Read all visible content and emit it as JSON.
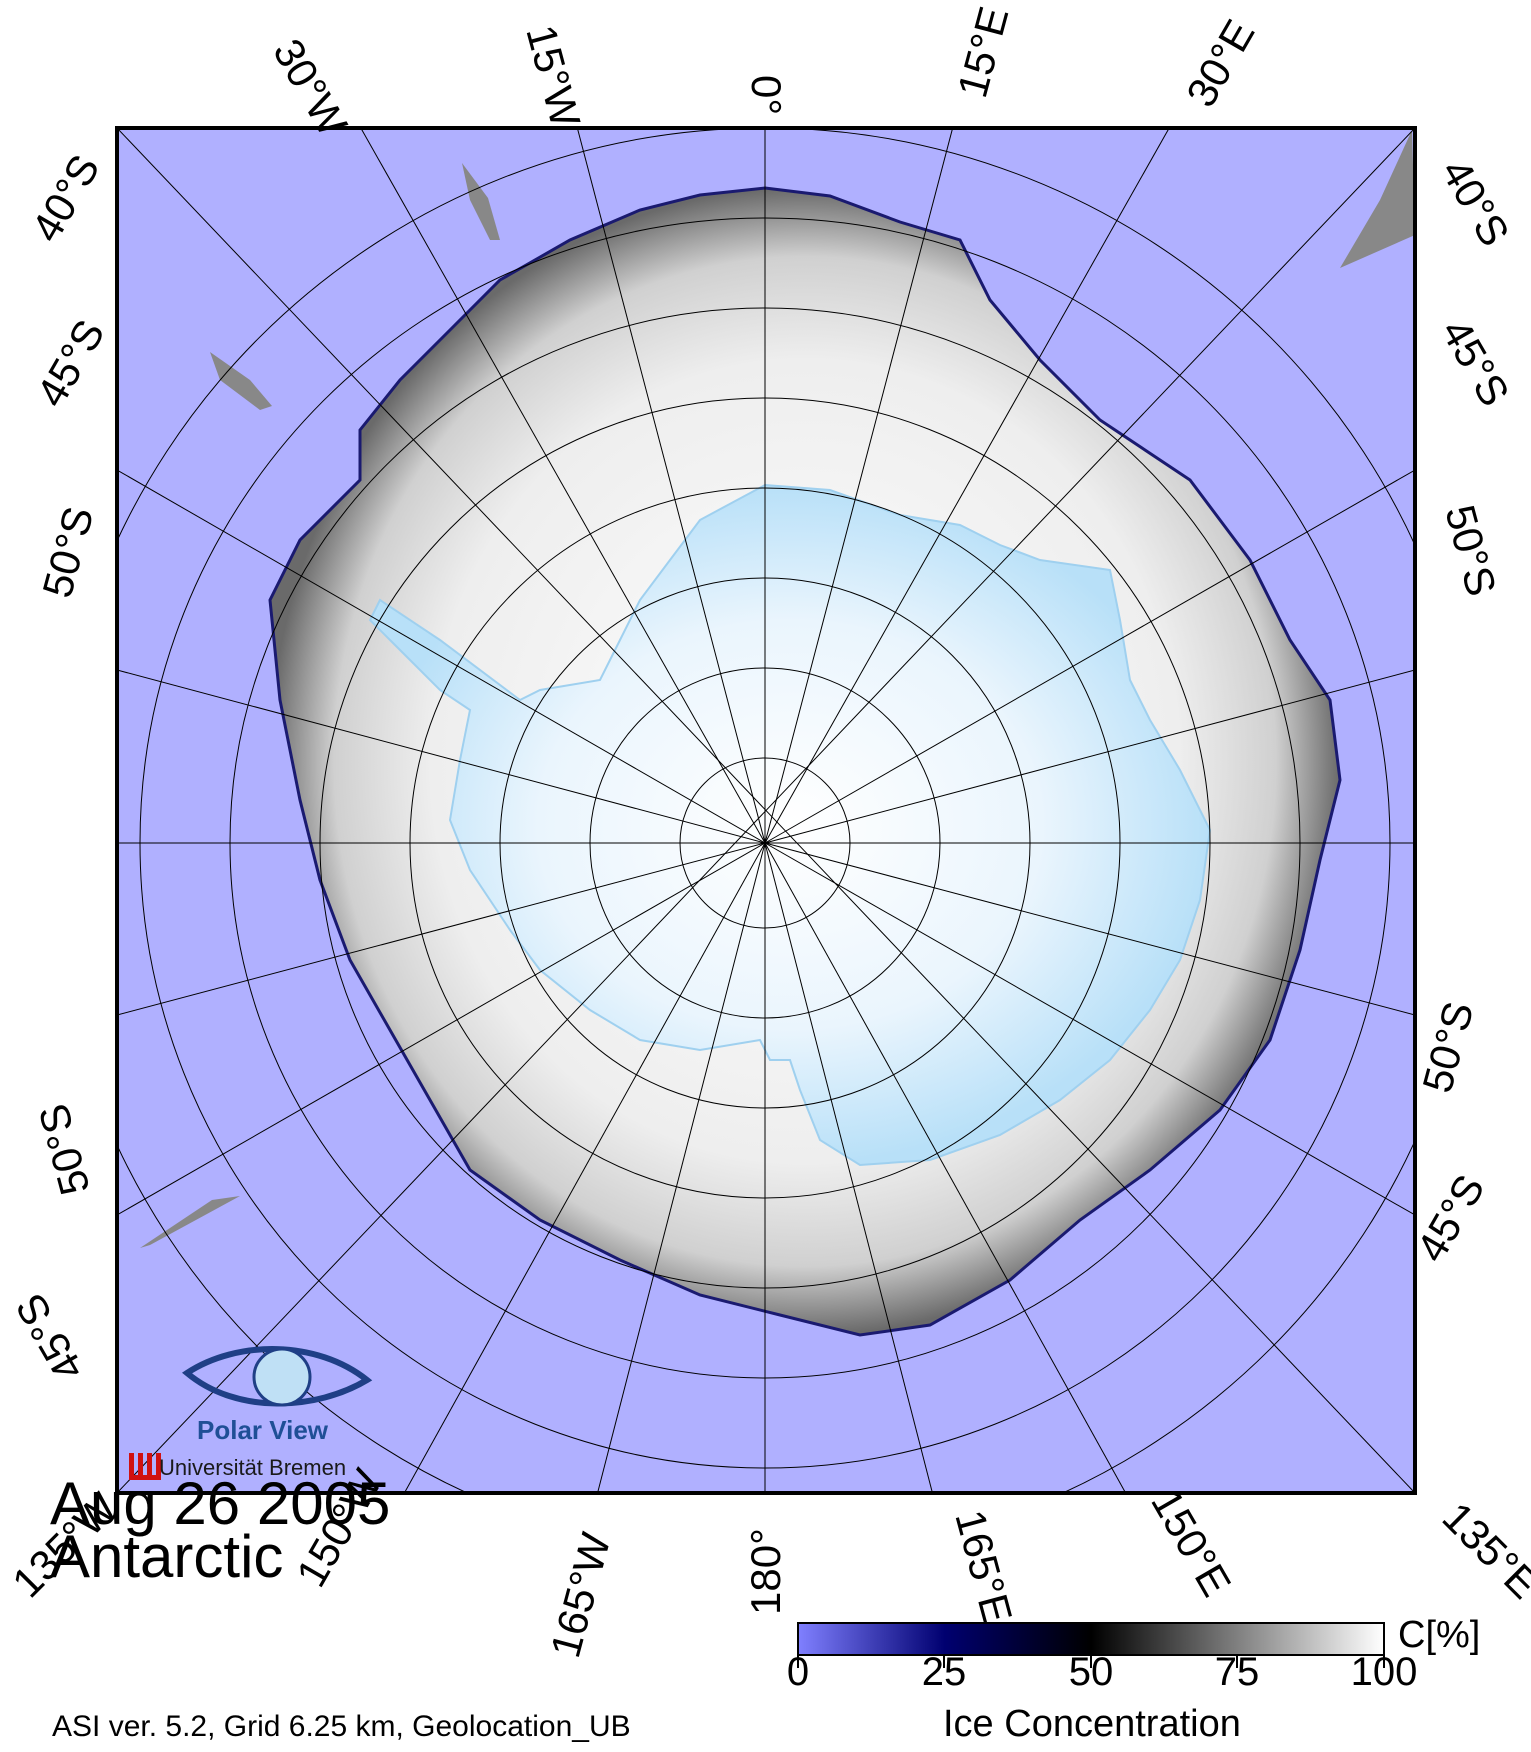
{
  "map": {
    "date": "Aug 26 2005",
    "region": "Antarctic",
    "info": "ASI ver. 5.2,  Grid 6.25 km, Geolocation_UB",
    "longitude_labels_top": [
      "30°W",
      "15°W",
      "0°",
      "15°E",
      "30°E"
    ],
    "longitude_labels_bottom": [
      "135°W",
      "150°W",
      "165°W",
      "180°",
      "165°E",
      "150°E",
      "135°E"
    ],
    "latitude_labels_left": [
      "40°S",
      "45°S",
      "50°S",
      "50°S",
      "45°S"
    ],
    "latitude_labels_right": [
      "40°S",
      "45°S",
      "50°S",
      "50°S",
      "45°S"
    ],
    "colors": {
      "ocean": "#b0b0ff",
      "land": "#cde9fb",
      "ice": "#f2f2f2",
      "grid": "#000000",
      "missing": "#888888"
    }
  },
  "colorbar": {
    "title": "Ice Concentration",
    "unit": "C[%]",
    "ticks": [
      "0",
      "25",
      "50",
      "75",
      "100"
    ],
    "colors": [
      "#8080ff",
      "#000070",
      "#000000",
      "#808080",
      "#ffffff"
    ]
  },
  "logo": {
    "name": "Polar View",
    "institution": "Universität Bremen"
  }
}
